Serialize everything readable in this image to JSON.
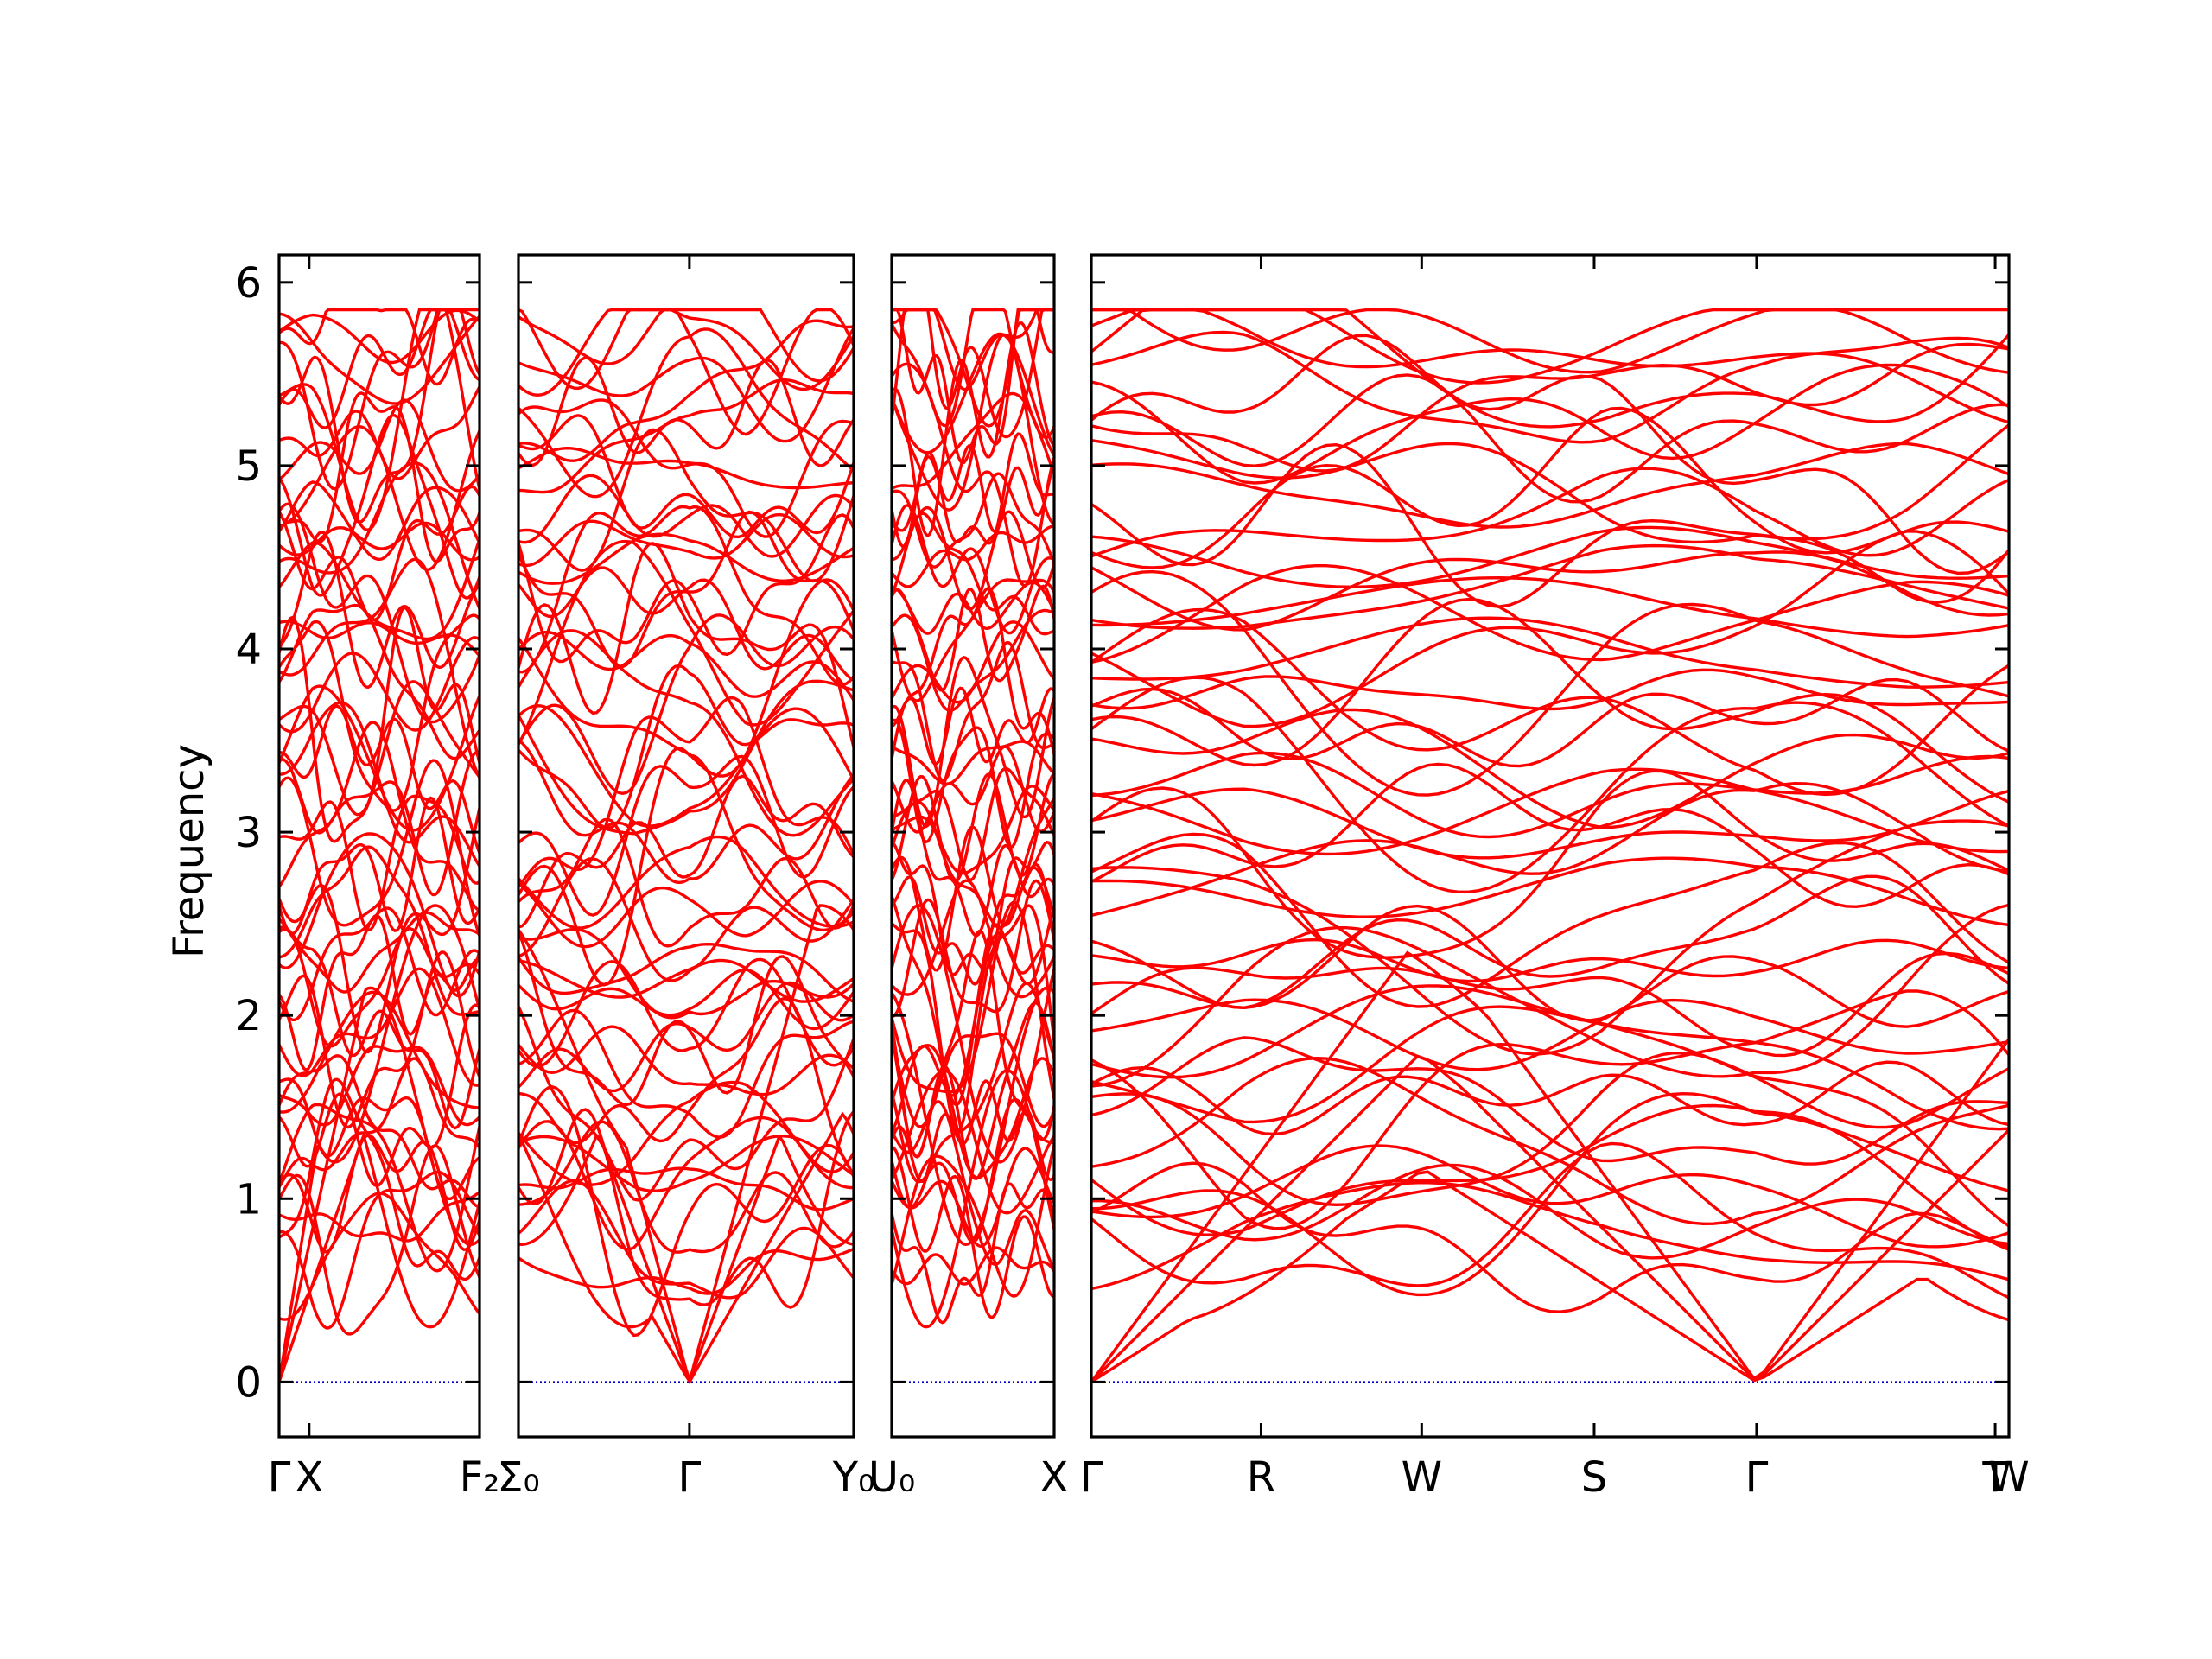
{
  "chart_data": {
    "type": "line",
    "ylabel": "Frequency",
    "ylim": [
      -0.3,
      6.15
    ],
    "yticks": [
      0,
      1,
      2,
      3,
      4,
      5,
      6
    ],
    "grid": false,
    "band_color": "#ff0000",
    "zero_line_color": "#0000cc",
    "panels": [
      {
        "ticks": [
          {
            "pos": 0.0,
            "label": "Γ"
          },
          {
            "pos": 0.15,
            "label": "X"
          },
          {
            "pos": 1.0,
            "label": "F₂"
          }
        ],
        "gamma_positions": [
          0.0
        ]
      },
      {
        "ticks": [
          {
            "pos": 0.0,
            "label": "Σ₀"
          },
          {
            "pos": 0.51,
            "label": "Γ"
          },
          {
            "pos": 1.0,
            "label": "Y₀"
          }
        ],
        "gamma_positions": [
          0.51
        ]
      },
      {
        "ticks": [
          {
            "pos": 0.0,
            "label": "U₀"
          },
          {
            "pos": 1.0,
            "label": "X"
          }
        ],
        "gamma_positions": []
      },
      {
        "ticks": [
          {
            "pos": 0.0,
            "label": "Γ"
          },
          {
            "pos": 0.185,
            "label": "R"
          },
          {
            "pos": 0.36,
            "label": "W"
          },
          {
            "pos": 0.548,
            "label": "S"
          },
          {
            "pos": 0.725,
            "label": "Γ"
          },
          {
            "pos": 0.985,
            "label": "T"
          },
          {
            "pos": 1.0,
            "label": "W"
          }
        ],
        "gamma_positions": [
          0.0,
          0.725
        ]
      }
    ],
    "band_count": 60,
    "band_top_frequency": 5.8
  }
}
